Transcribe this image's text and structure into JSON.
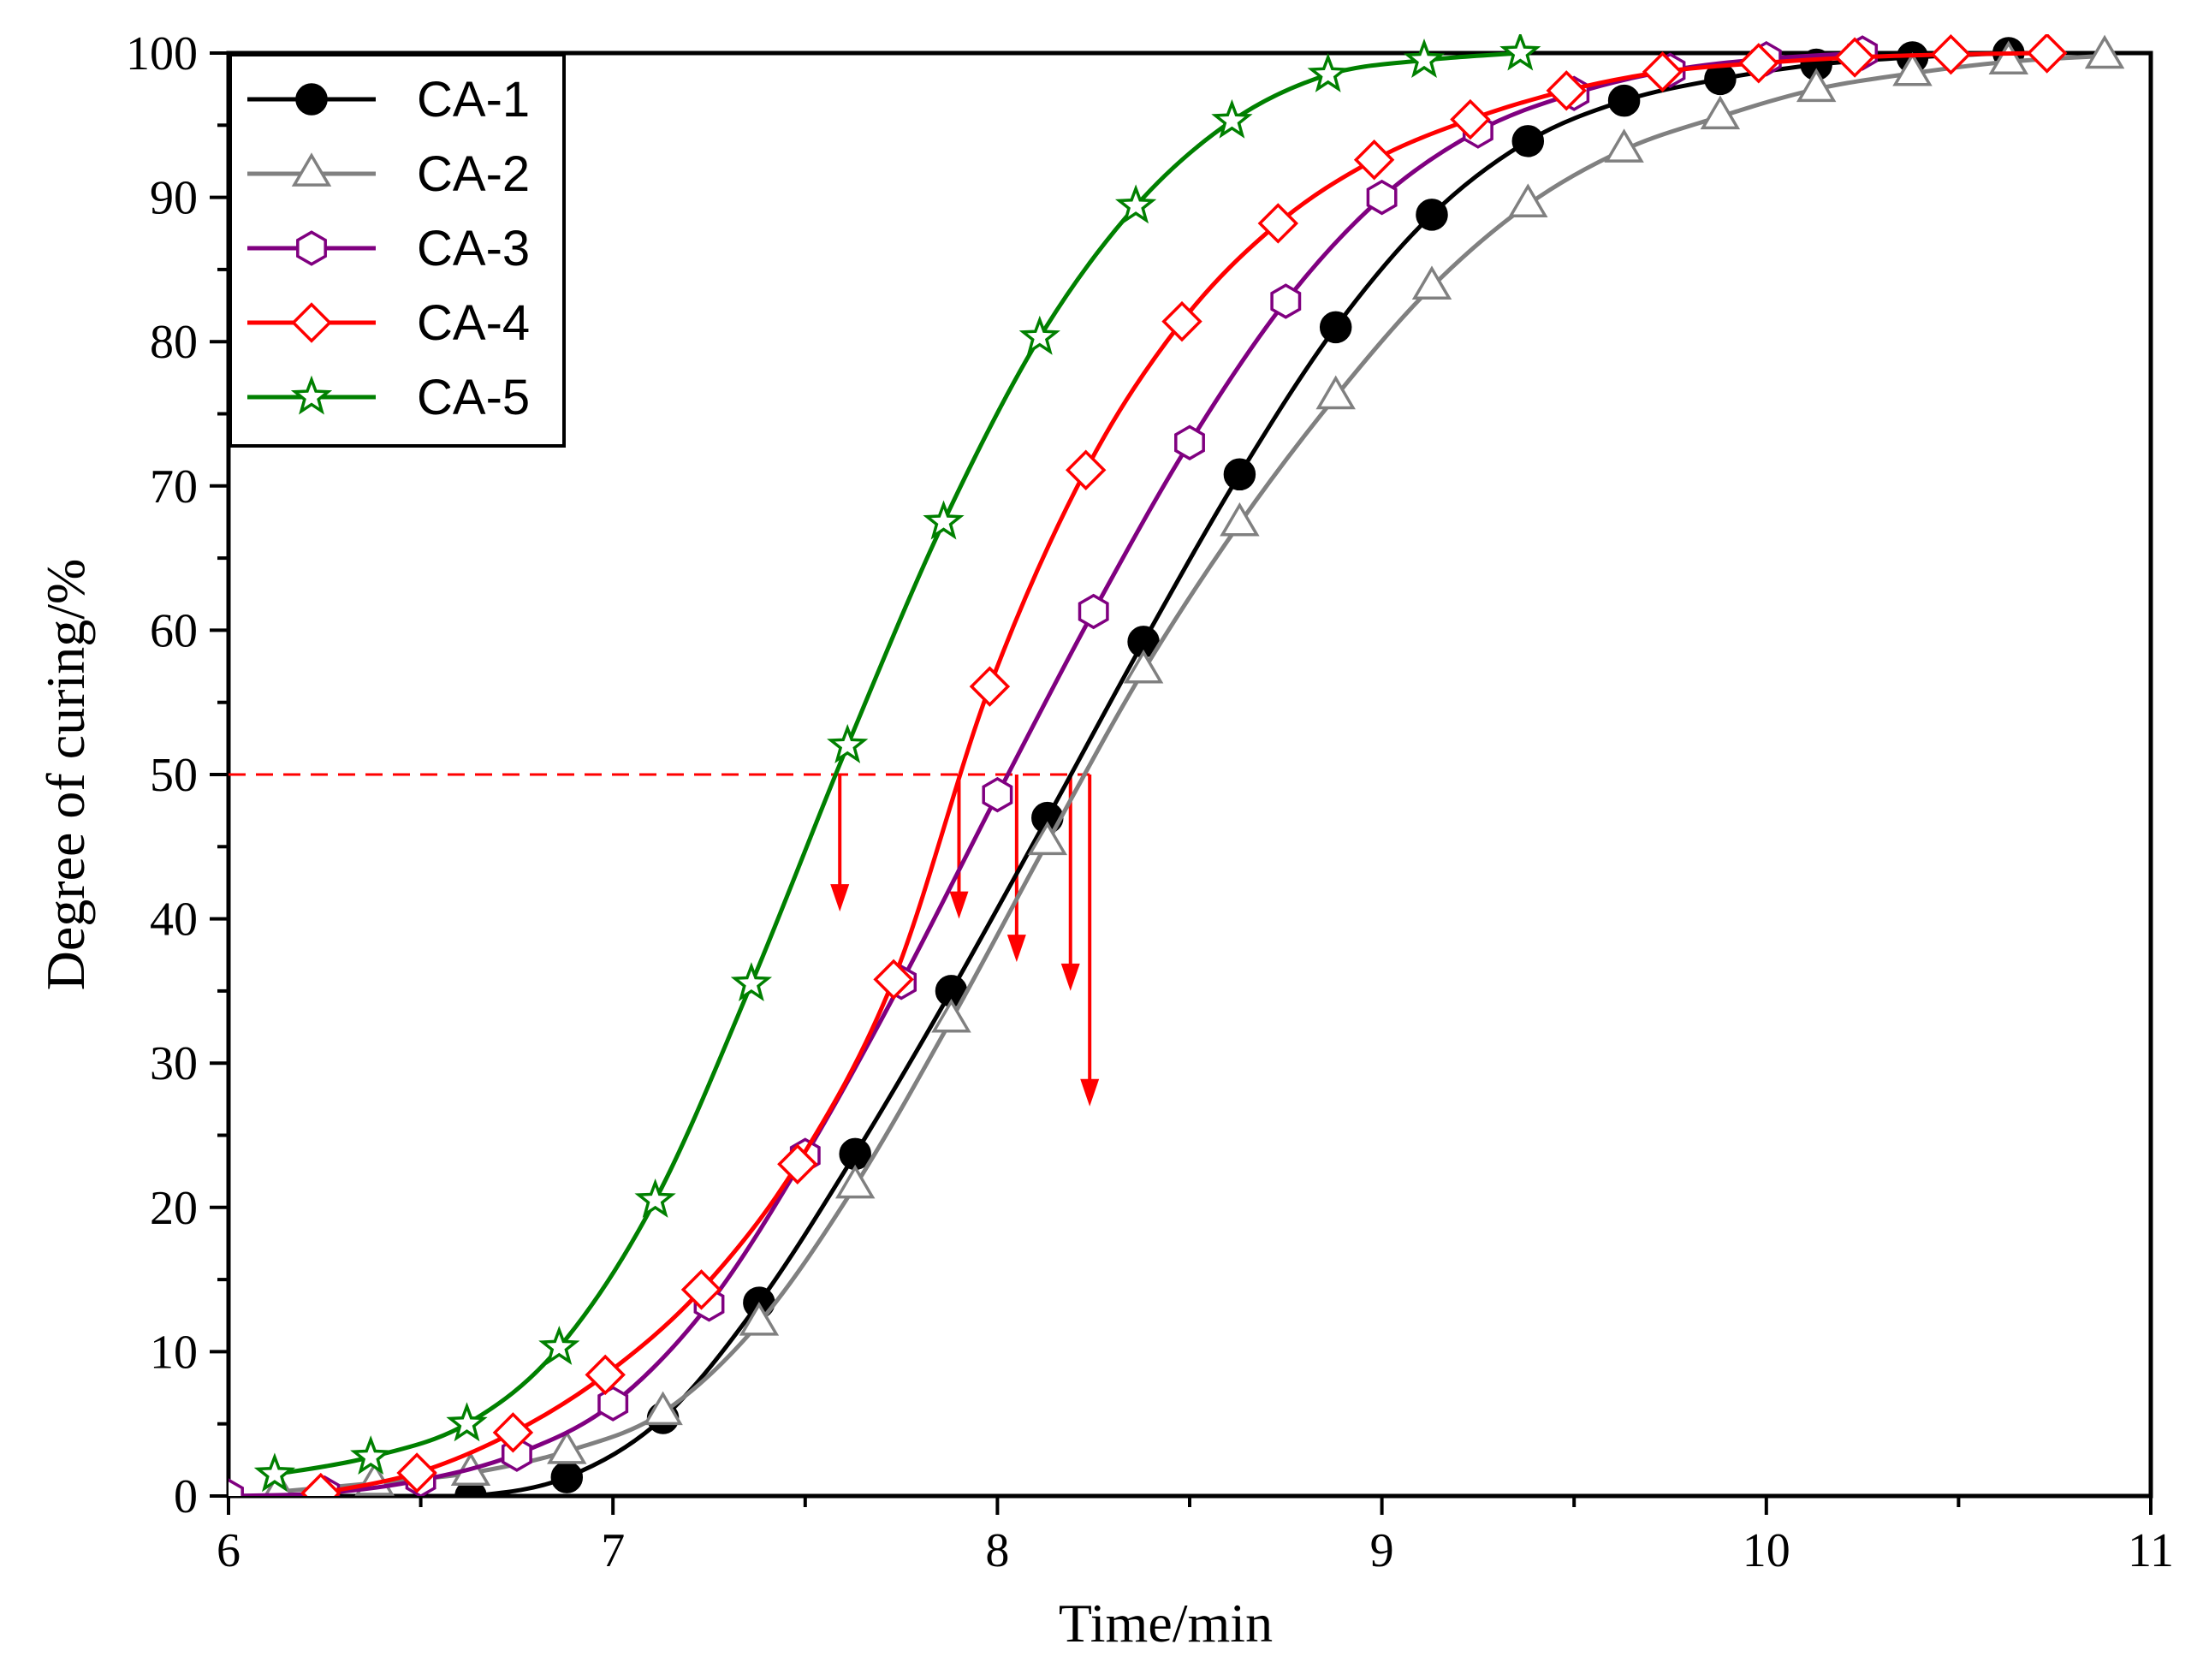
{
  "chart_data": {
    "type": "line",
    "title": "",
    "xlabel": "Time/min",
    "ylabel": "Degree of curing/%",
    "xlim": [
      6,
      11
    ],
    "ylim": [
      0,
      100
    ],
    "xticks": [
      "6",
      "7",
      "8",
      "9",
      "10",
      "11"
    ],
    "yticks": [
      "0",
      "10",
      "20",
      "30",
      "40",
      "50",
      "60",
      "70",
      "80",
      "90",
      "100"
    ],
    "legend_position": "top-left",
    "reference_line": {
      "y": 50,
      "color": "#ff0000",
      "style": "dashed"
    },
    "t50_arrows": [
      {
        "series": "CA-5",
        "x": 7.59,
        "y_end": 40.5
      },
      {
        "series": "CA-4",
        "x": 7.9,
        "y_end": 40.0
      },
      {
        "series": "CA-3",
        "x": 8.05,
        "y_end": 37.0
      },
      {
        "series": "CA-1",
        "x": 8.19,
        "y_end": 35.0
      },
      {
        "series": "CA-2",
        "x": 8.24,
        "y_end": 27.0
      }
    ],
    "series": [
      {
        "name": "CA-1",
        "color": "#000000",
        "marker": "circle-filled",
        "x": [
          6.38,
          6.63,
          6.88,
          7.13,
          7.38,
          7.63,
          7.88,
          8.13,
          8.38,
          8.63,
          8.88,
          9.13,
          9.38,
          9.63,
          9.88,
          10.13,
          10.38,
          10.63
        ],
        "y": [
          0,
          0,
          1.3,
          5.4,
          13.4,
          23.7,
          35,
          47,
          59.2,
          70.8,
          81,
          88.8,
          93.9,
          96.7,
          98.2,
          99.2,
          99.7,
          100
        ]
      },
      {
        "name": "CA-2",
        "color": "#808080",
        "marker": "triangle-open",
        "x": [
          6.13,
          6.38,
          6.63,
          6.88,
          7.13,
          7.38,
          7.63,
          7.88,
          8.13,
          8.38,
          8.63,
          8.88,
          9.13,
          9.38,
          9.63,
          9.88,
          10.13,
          10.38,
          10.63,
          10.88
        ],
        "y": [
          0.3,
          0.9,
          1.6,
          3.1,
          5.8,
          12,
          21.5,
          33,
          45.3,
          57.2,
          67.4,
          76.2,
          83.8,
          89.5,
          93.3,
          95.6,
          97.5,
          98.6,
          99.4,
          99.8
        ]
      },
      {
        "name": "CA-3",
        "color": "#800080",
        "marker": "hexagon-open",
        "x": [
          6.0,
          6.25,
          6.5,
          6.75,
          7.0,
          7.25,
          7.5,
          7.75,
          8.0,
          8.25,
          8.5,
          8.75,
          9.0,
          9.25,
          9.5,
          9.75,
          10.0,
          10.25
        ],
        "y": [
          0,
          0.2,
          1.1,
          2.9,
          6.4,
          13.3,
          23.6,
          35.6,
          48.6,
          61.3,
          73,
          82.8,
          90,
          94.6,
          97.2,
          98.8,
          99.6,
          100
        ]
      },
      {
        "name": "CA-4",
        "color": "#ff0000",
        "marker": "diamond-open",
        "x": [
          6.24,
          6.49,
          6.74,
          6.98,
          7.23,
          7.48,
          7.73,
          7.98,
          8.23,
          8.48,
          8.73,
          8.98,
          9.23,
          9.48,
          9.73,
          9.98,
          10.23,
          10.48,
          10.73
        ],
        "y": [
          0.2,
          1.6,
          4.4,
          8.4,
          14.3,
          23,
          35.8,
          56.1,
          71.1,
          81.4,
          88.2,
          92.6,
          95.4,
          97.4,
          98.7,
          99.3,
          99.7,
          99.9,
          100
        ]
      },
      {
        "name": "CA-5",
        "color": "#008000",
        "marker": "star-open",
        "x": [
          6.12,
          6.37,
          6.62,
          6.86,
          7.11,
          7.36,
          7.61,
          7.86,
          8.11,
          8.36,
          8.61,
          8.86,
          9.11,
          9.36
        ],
        "y": [
          1.5,
          2.7,
          5.0,
          10.3,
          20.5,
          35.5,
          52,
          67.5,
          80.3,
          89.4,
          95.3,
          98.5,
          99.5,
          100
        ]
      }
    ]
  }
}
